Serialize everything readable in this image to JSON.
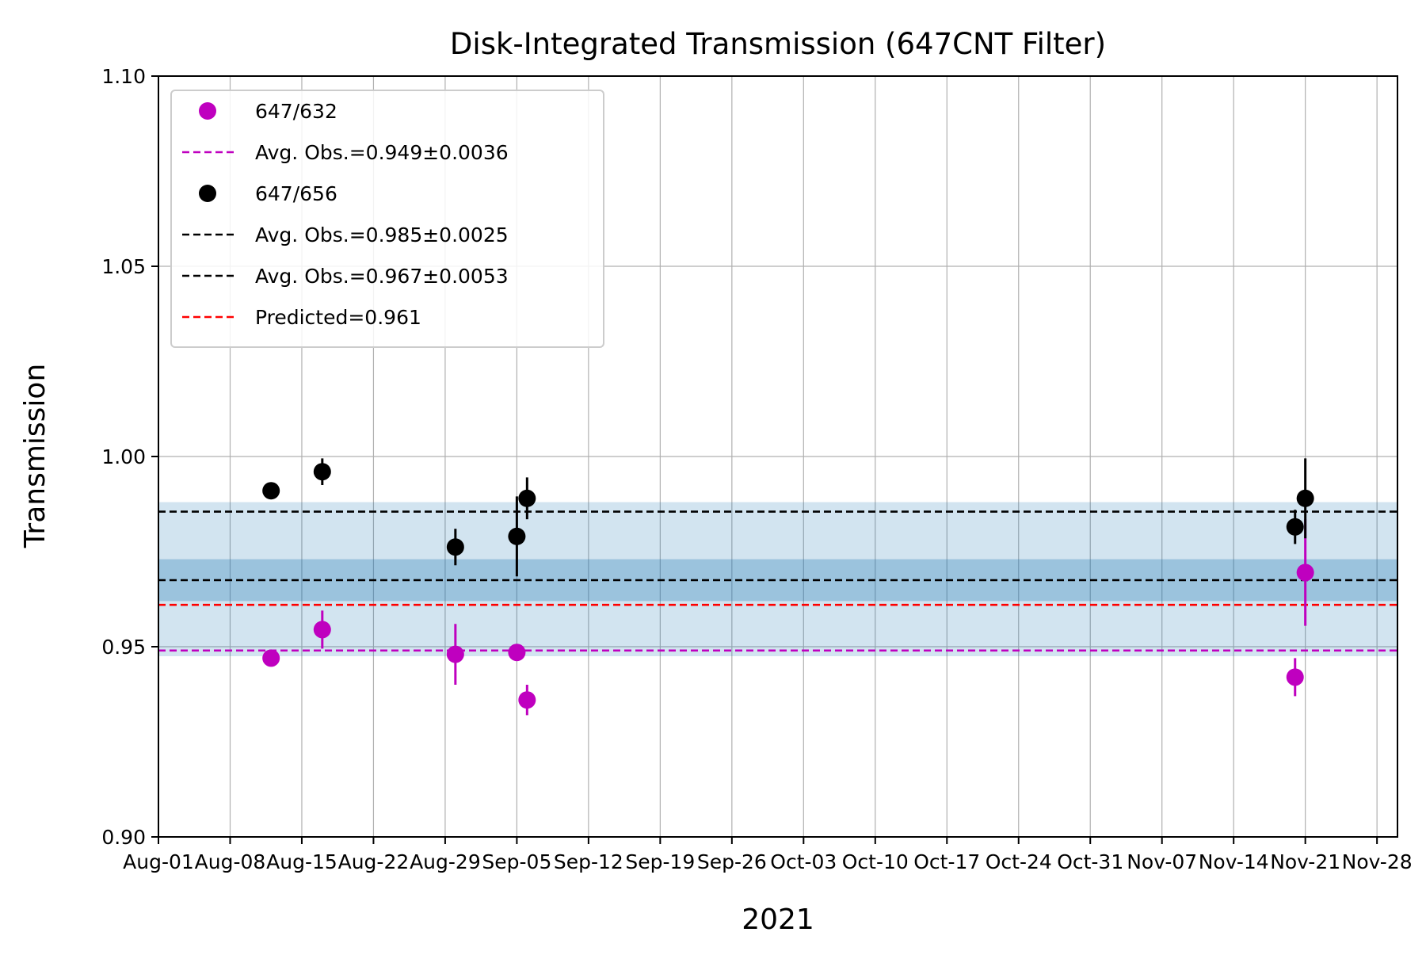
{
  "chart_data": {
    "type": "scatter",
    "title": "Disk-Integrated Transmission (647CNT Filter)",
    "xlabel": "2021",
    "ylabel": "Transmission",
    "xlim": [
      "2021-08-01",
      "2021-11-30"
    ],
    "ylim": [
      0.9,
      1.1
    ],
    "yticks": [
      "0.90",
      "0.95",
      "1.00",
      "1.05",
      "1.10"
    ],
    "xticks": [
      {
        "date": "2021-08-01",
        "label": "Aug-01"
      },
      {
        "date": "2021-08-08",
        "label": "Aug-08"
      },
      {
        "date": "2021-08-15",
        "label": "Aug-15"
      },
      {
        "date": "2021-08-22",
        "label": "Aug-22"
      },
      {
        "date": "2021-08-29",
        "label": "Aug-29"
      },
      {
        "date": "2021-09-05",
        "label": "Sep-05"
      },
      {
        "date": "2021-09-12",
        "label": "Sep-12"
      },
      {
        "date": "2021-09-19",
        "label": "Sep-19"
      },
      {
        "date": "2021-09-26",
        "label": "Sep-26"
      },
      {
        "date": "2021-10-03",
        "label": "Oct-03"
      },
      {
        "date": "2021-10-10",
        "label": "Oct-10"
      },
      {
        "date": "2021-10-17",
        "label": "Oct-17"
      },
      {
        "date": "2021-10-24",
        "label": "Oct-24"
      },
      {
        "date": "2021-10-31",
        "label": "Oct-31"
      },
      {
        "date": "2021-11-07",
        "label": "Nov-07"
      },
      {
        "date": "2021-11-14",
        "label": "Nov-14"
      },
      {
        "date": "2021-11-21",
        "label": "Nov-21"
      },
      {
        "date": "2021-11-28",
        "label": "Nov-28"
      }
    ],
    "grid": true,
    "legend_position": "top-left",
    "series": [
      {
        "name": "647/632",
        "kind": "points",
        "color": "#bf00bf",
        "points": [
          {
            "x": "2021-08-12",
            "y": 0.947,
            "err": 0.0005
          },
          {
            "x": "2021-08-17",
            "y": 0.9545,
            "err": 0.005
          },
          {
            "x": "2021-08-30",
            "y": 0.948,
            "err": 0.008
          },
          {
            "x": "2021-09-05",
            "y": 0.9485,
            "err": 0.001
          },
          {
            "x": "2021-09-06",
            "y": 0.936,
            "err": 0.004
          },
          {
            "x": "2021-11-20",
            "y": 0.942,
            "err": 0.005
          },
          {
            "x": "2021-11-21",
            "y": 0.9695,
            "err": 0.014
          }
        ]
      },
      {
        "name": "647/656",
        "kind": "points",
        "color": "#000000",
        "points": [
          {
            "x": "2021-08-12",
            "y": 0.991,
            "err": 0.0005
          },
          {
            "x": "2021-08-17",
            "y": 0.996,
            "err": 0.0035
          },
          {
            "x": "2021-08-30",
            "y": 0.9762,
            "err": 0.0048
          },
          {
            "x": "2021-09-05",
            "y": 0.979,
            "err": 0.0105
          },
          {
            "x": "2021-09-06",
            "y": 0.989,
            "err": 0.0055
          },
          {
            "x": "2021-11-20",
            "y": 0.9815,
            "err": 0.0045
          },
          {
            "x": "2021-11-21",
            "y": 0.989,
            "err": 0.0105
          }
        ]
      },
      {
        "name": "Avg. Obs.=0.949±0.0036",
        "kind": "hline",
        "y": 0.949,
        "color": "#bf00bf",
        "dashed": true
      },
      {
        "name": "Avg. Obs.=0.985±0.0025",
        "kind": "hline",
        "y": 0.9855,
        "color": "#000000",
        "dashed": true
      },
      {
        "name": "Avg. Obs.=0.967±0.0053",
        "kind": "hline",
        "y": 0.9675,
        "color": "#000000",
        "dashed": true
      },
      {
        "name": "Predicted=0.961",
        "kind": "hline",
        "y": 0.961,
        "color": "#ff0000",
        "dashed": true
      }
    ],
    "bands": [
      {
        "y0": 0.9475,
        "y1": 0.988,
        "color": "#1f77b4",
        "opacity": 0.2
      },
      {
        "y0": 0.962,
        "y1": 0.973,
        "color": "#1f77b4",
        "opacity": 0.3
      }
    ],
    "legend": [
      {
        "label": "647/632",
        "marker": "point",
        "color": "#bf00bf"
      },
      {
        "label": "Avg. Obs.=0.949±0.0036",
        "marker": "dash",
        "color": "#bf00bf"
      },
      {
        "label": "647/656",
        "marker": "point",
        "color": "#000000"
      },
      {
        "label": "Avg. Obs.=0.985±0.0025",
        "marker": "dash",
        "color": "#000000"
      },
      {
        "label": "Avg. Obs.=0.967±0.0053",
        "marker": "dash",
        "color": "#000000"
      },
      {
        "label": "Predicted=0.961",
        "marker": "dash",
        "color": "#ff0000"
      }
    ]
  }
}
